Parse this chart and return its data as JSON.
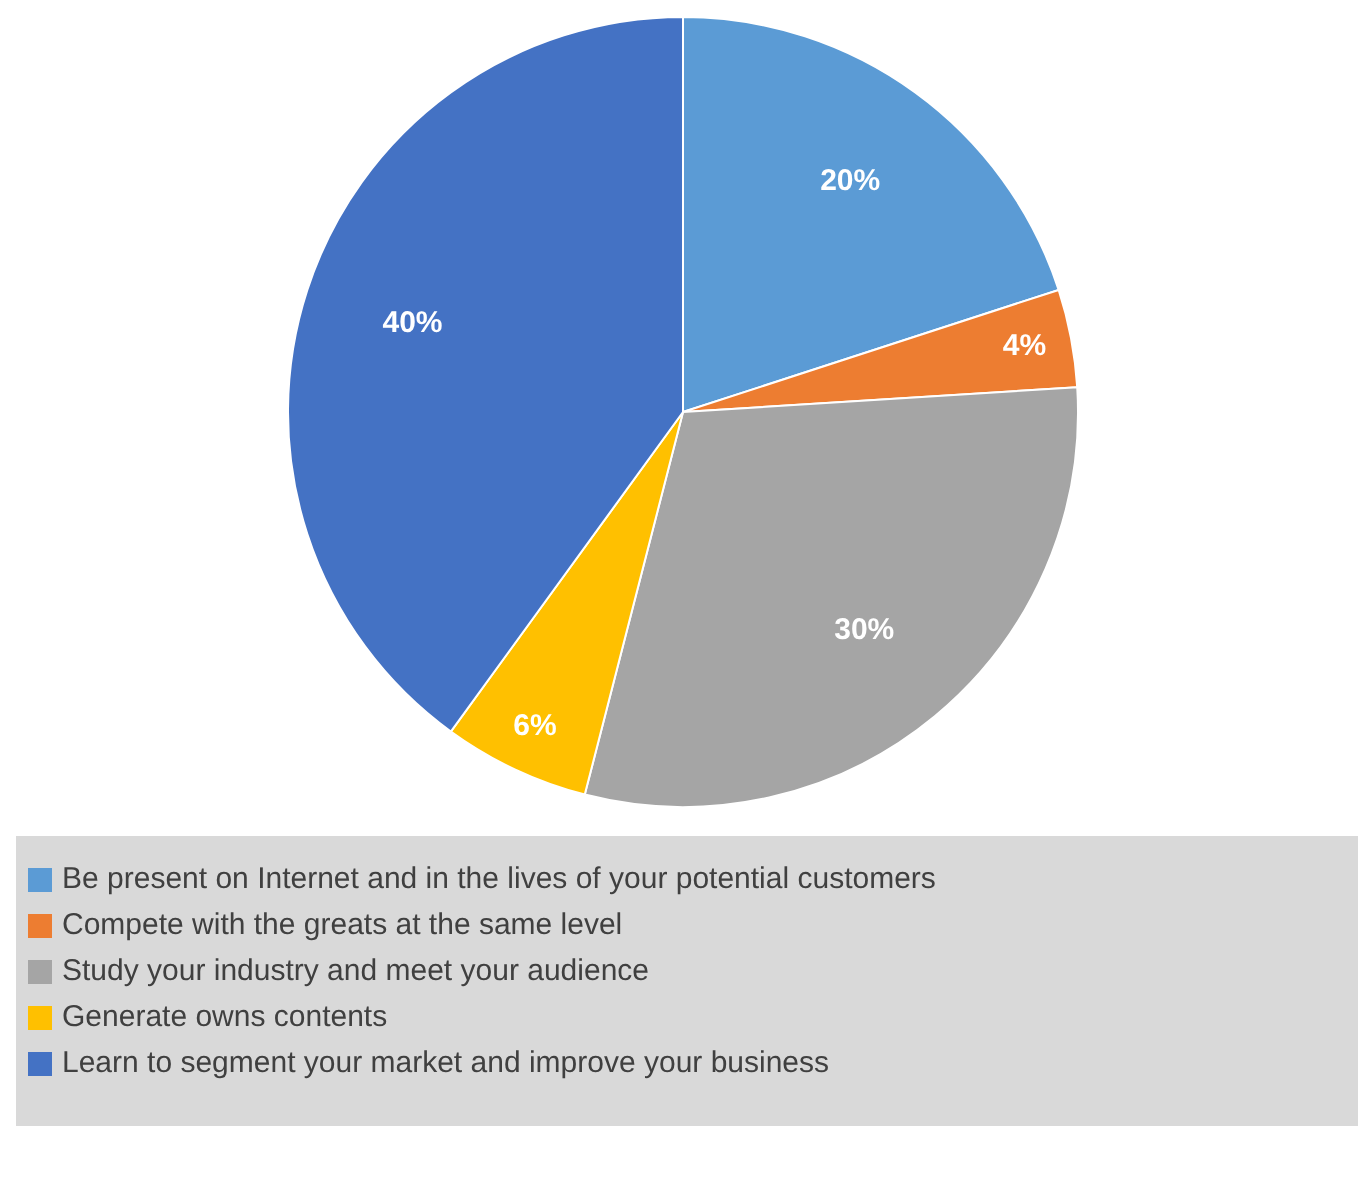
{
  "chart_data": {
    "type": "pie",
    "categories": [
      "Be present on Internet and in the lives of your potential customers",
      "Compete with the greats at the same level",
      "Study your industry and meet your audience",
      "Generate owns contents",
      "Learn to segment your market and improve your business"
    ],
    "values": [
      20,
      4,
      30,
      6,
      40
    ],
    "colors": [
      "#5b9bd5",
      "#ed7d31",
      "#a5a5a5",
      "#ffc000",
      "#4472c4"
    ],
    "value_labels": [
      "20%",
      "4%",
      "30%",
      "6%",
      "40%"
    ],
    "legend": "bottom"
  }
}
